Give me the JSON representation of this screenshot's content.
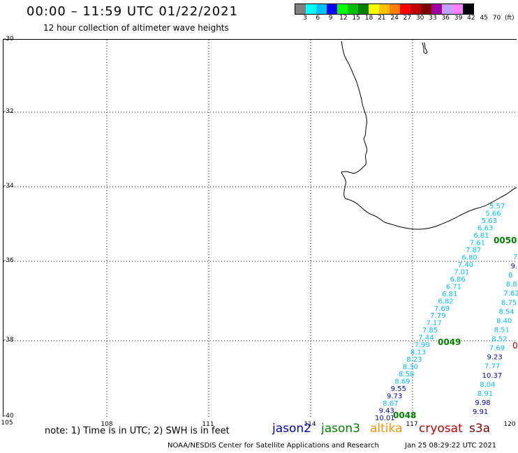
{
  "title": "00:00 – 11:59 UTC 01/22/2021",
  "subtitle": "12 hour collection of altimeter wave heights",
  "colorbar": {
    "colors": [
      "#808080",
      "#00ffff",
      "#00c0ff",
      "#0000ff",
      "#00ff00",
      "#00c000",
      "#008000",
      "#ffff00",
      "#ffc000",
      "#ff8000",
      "#ff0000",
      "#c00000",
      "#800000",
      "#a000a0",
      "#c0a0ff",
      "#ff80ff",
      "#000000"
    ],
    "labels": [
      "3",
      "6",
      "9",
      "12",
      "15",
      "18",
      "21",
      "24",
      "27",
      "30",
      "33",
      "36",
      "39",
      "42",
      "45",
      "70",
      "(ft)"
    ]
  },
  "lat_labels": [
    "-30",
    "-32",
    "-34",
    "-36",
    "-38",
    "-40"
  ],
  "lon_labels": [
    "105",
    "108",
    "111",
    "114",
    "117",
    "120"
  ],
  "note": "note: 1) Time is in UTC; 2) SWH is in feet",
  "legend": [
    {
      "name": "jason2",
      "color": "#0000c0"
    },
    {
      "name": "jason3",
      "color": "#008000"
    },
    {
      "name": "altika",
      "color": "#ff9000"
    },
    {
      "name": "cryosat",
      "color": "#c00000"
    },
    {
      "name": "s3a",
      "color": "#800000"
    }
  ],
  "footer_left": "NOAA/NESDIS Center for Satellite Applications and Research",
  "footer_right": "Jan 25 08:29:22 UTC 2021",
  "time_labels": [
    {
      "text": "0050",
      "color": "#008000"
    },
    {
      "text": "0049",
      "color": "#008000"
    },
    {
      "text": "0048",
      "color": "#008000"
    }
  ],
  "track_a": [
    {
      "v": "5.57",
      "c": "#00c0ff"
    },
    {
      "v": "5.66",
      "c": "#00c0ff"
    },
    {
      "v": "5.63",
      "c": "#00c0ff"
    },
    {
      "v": "6.63",
      "c": "#00c0ff"
    },
    {
      "v": "6.81",
      "c": "#00c0ff"
    },
    {
      "v": "7.61",
      "c": "#00c0ff"
    },
    {
      "v": "7.87",
      "c": "#00c0ff"
    },
    {
      "v": "6.80",
      "c": "#00c0ff"
    },
    {
      "v": "7.40",
      "c": "#00c0ff"
    },
    {
      "v": "7.01",
      "c": "#00c0ff"
    },
    {
      "v": "6.86",
      "c": "#00c0ff"
    },
    {
      "v": "6.71",
      "c": "#00c0ff"
    },
    {
      "v": "6.81",
      "c": "#00c0ff"
    },
    {
      "v": "6.82",
      "c": "#00c0ff"
    },
    {
      "v": "7.69",
      "c": "#00c0ff"
    },
    {
      "v": "7.79",
      "c": "#00c0ff"
    },
    {
      "v": "7.17",
      "c": "#00c0ff"
    },
    {
      "v": "7.85",
      "c": "#00c0ff"
    },
    {
      "v": "7.44",
      "c": "#00c0ff"
    },
    {
      "v": "7.99",
      "c": "#00c0ff"
    },
    {
      "v": "8.13",
      "c": "#00c0ff"
    },
    {
      "v": "8.23",
      "c": "#00c0ff"
    },
    {
      "v": "8.30",
      "c": "#00c0ff"
    },
    {
      "v": "8.58",
      "c": "#00c0ff"
    },
    {
      "v": "8.69",
      "c": "#00c0ff"
    },
    {
      "v": "9.55",
      "c": "#0000c0"
    },
    {
      "v": "9.73",
      "c": "#0000c0"
    },
    {
      "v": "8.67",
      "c": "#00c0ff"
    },
    {
      "v": "9.43",
      "c": "#0000c0"
    },
    {
      "v": "10.01",
      "c": "#0000c0"
    }
  ],
  "track_b": [
    {
      "v": "7",
      "c": "#00c0ff"
    },
    {
      "v": "9.",
      "c": "#0000c0"
    },
    {
      "v": "8",
      "c": "#00c0ff"
    },
    {
      "v": "8.8",
      "c": "#00c0ff"
    },
    {
      "v": "7.62",
      "c": "#00c0ff"
    },
    {
      "v": "8.75",
      "c": "#00c0ff"
    },
    {
      "v": "8.54",
      "c": "#00c0ff"
    },
    {
      "v": "8.40",
      "c": "#00c0ff"
    },
    {
      "v": "8.51",
      "c": "#00c0ff"
    },
    {
      "v": "8.52",
      "c": "#00c0ff"
    },
    {
      "v": "7.69",
      "c": "#00c0ff"
    },
    {
      "v": "9.23",
      "c": "#0000c0"
    },
    {
      "v": "7.77",
      "c": "#00c0ff"
    },
    {
      "v": "10.37",
      "c": "#0000c0"
    },
    {
      "v": "8.04",
      "c": "#00c0ff"
    },
    {
      "v": "8.91",
      "c": "#00c0ff"
    },
    {
      "v": "9.98",
      "c": "#0000c0"
    },
    {
      "v": "9.91",
      "c": "#0000c0"
    }
  ],
  "edge_label": {
    "text": "0",
    "color": "#c00000"
  }
}
